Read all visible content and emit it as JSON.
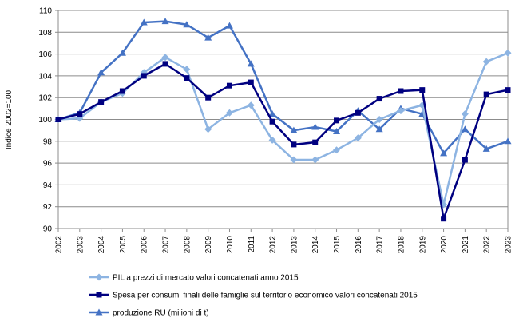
{
  "chart_data": {
    "type": "line",
    "title": "",
    "xlabel": "",
    "ylabel": "Indice 2002=100",
    "ylim": [
      90,
      110
    ],
    "ytick_step": 2,
    "grid": "horizontal",
    "legend_position": "bottom",
    "x": [
      "2002",
      "2003",
      "2004",
      "2005",
      "2006",
      "2007",
      "2008",
      "2009",
      "2010",
      "2011",
      "2012",
      "2013",
      "2014",
      "2015",
      "2016",
      "2017",
      "2018",
      "2019",
      "2020",
      "2021",
      "2022",
      "2023"
    ],
    "series": [
      {
        "name": "PIL a prezzi di mercato valori concatenati anno 2015",
        "color": "#8db4e2",
        "marker": "diamond",
        "values": [
          100.0,
          100.1,
          101.6,
          102.4,
          104.3,
          105.7,
          104.6,
          99.1,
          100.6,
          101.3,
          98.1,
          96.3,
          96.3,
          97.2,
          98.3,
          100.0,
          100.8,
          101.3,
          92.2,
          100.5,
          105.3,
          106.1
        ]
      },
      {
        "name": "Spesa per consumi finali delle famiglie sul territorio economico valori concatenati 2015",
        "color": "#000080",
        "marker": "square",
        "values": [
          100.0,
          100.5,
          101.6,
          102.6,
          104.0,
          105.1,
          103.8,
          102.0,
          103.1,
          103.4,
          99.8,
          97.7,
          97.9,
          99.9,
          100.6,
          101.9,
          102.6,
          102.7,
          90.9,
          96.3,
          102.3,
          102.7
        ]
      },
      {
        "name": "produzione RU (milioni di t)",
        "color": "#4472c4",
        "marker": "triangle",
        "values": [
          100.0,
          100.6,
          104.3,
          106.1,
          108.9,
          109.0,
          108.7,
          107.5,
          108.6,
          105.1,
          100.5,
          99.0,
          99.3,
          98.9,
          100.8,
          99.1,
          101.0,
          100.5,
          96.9,
          99.1,
          97.3,
          98.0
        ]
      }
    ]
  }
}
